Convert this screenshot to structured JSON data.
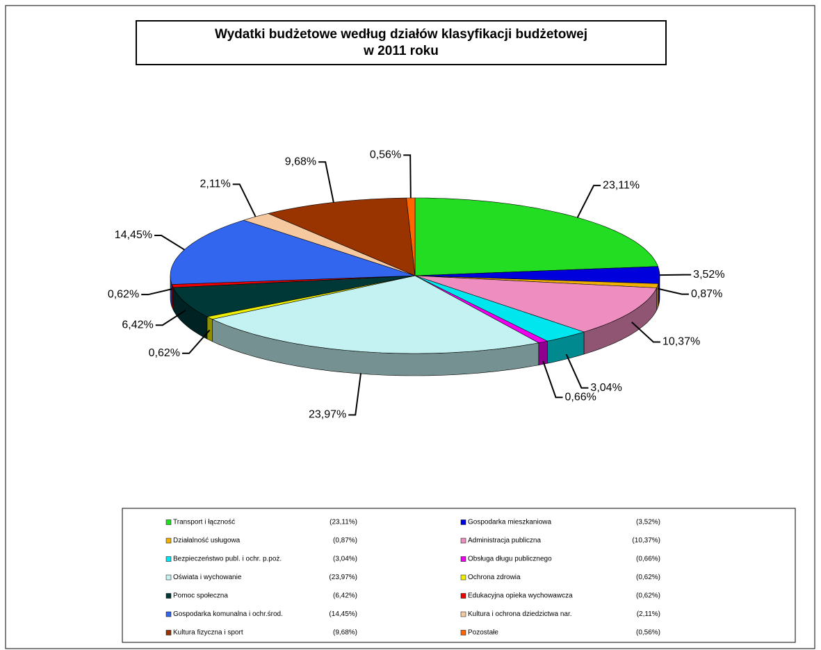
{
  "chart_data": {
    "type": "pie",
    "title": [
      "Wydatki budżetowe według działów klasyfikacji budżetowej",
      "w 2011 roku"
    ],
    "categories": [
      "Transport i łączność",
      "Gospodarka mieszkaniowa",
      "Działalność usługowa",
      "Administracja publiczna",
      "Bezpieczeństwo publ. i ochr. p.poż.",
      "Obsługa długu publicznego",
      "Oświata i wychowanie",
      "Ochrona zdrowia",
      "Pomoc społeczna",
      "Edukacyjna opieka wychowawcza",
      "Gospodarka komunalna i ochr.środ.",
      "Kultura i ochrona dziedzictwa nar.",
      "Kultura fizyczna i sport",
      "Pozostałe"
    ],
    "values": [
      23.11,
      3.52,
      0.87,
      10.37,
      3.04,
      0.66,
      23.97,
      0.62,
      6.42,
      0.62,
      14.45,
      2.11,
      9.68,
      0.56
    ],
    "value_labels": [
      "23,11%",
      "3,52%",
      "0,87%",
      "10,37%",
      "3,04%",
      "0,66%",
      "23,97%",
      "0,62%",
      "6,42%",
      "0,62%",
      "14,45%",
      "2,11%",
      "9,68%",
      "0,56%"
    ],
    "legend_value_labels": [
      "(23,11%)",
      "(3,52%)",
      "(0,87%)",
      "(10,37%)",
      "(3,04%)",
      "(0,66%)",
      "(23,97%)",
      "(0,62%)",
      "(6,42%)",
      "(0,62%)",
      "(14,45%)",
      "(2,11%)",
      "(9,68%)",
      "(0,56%)"
    ],
    "colors": [
      "#22dd22",
      "#0000dd",
      "#f0b000",
      "#ee8ec0",
      "#00e6ee",
      "#ee00ee",
      "#c4f2f2",
      "#eeee00",
      "#003838",
      "#ee0000",
      "#3366ee",
      "#f5c8a0",
      "#993300",
      "#ff6600"
    ]
  }
}
